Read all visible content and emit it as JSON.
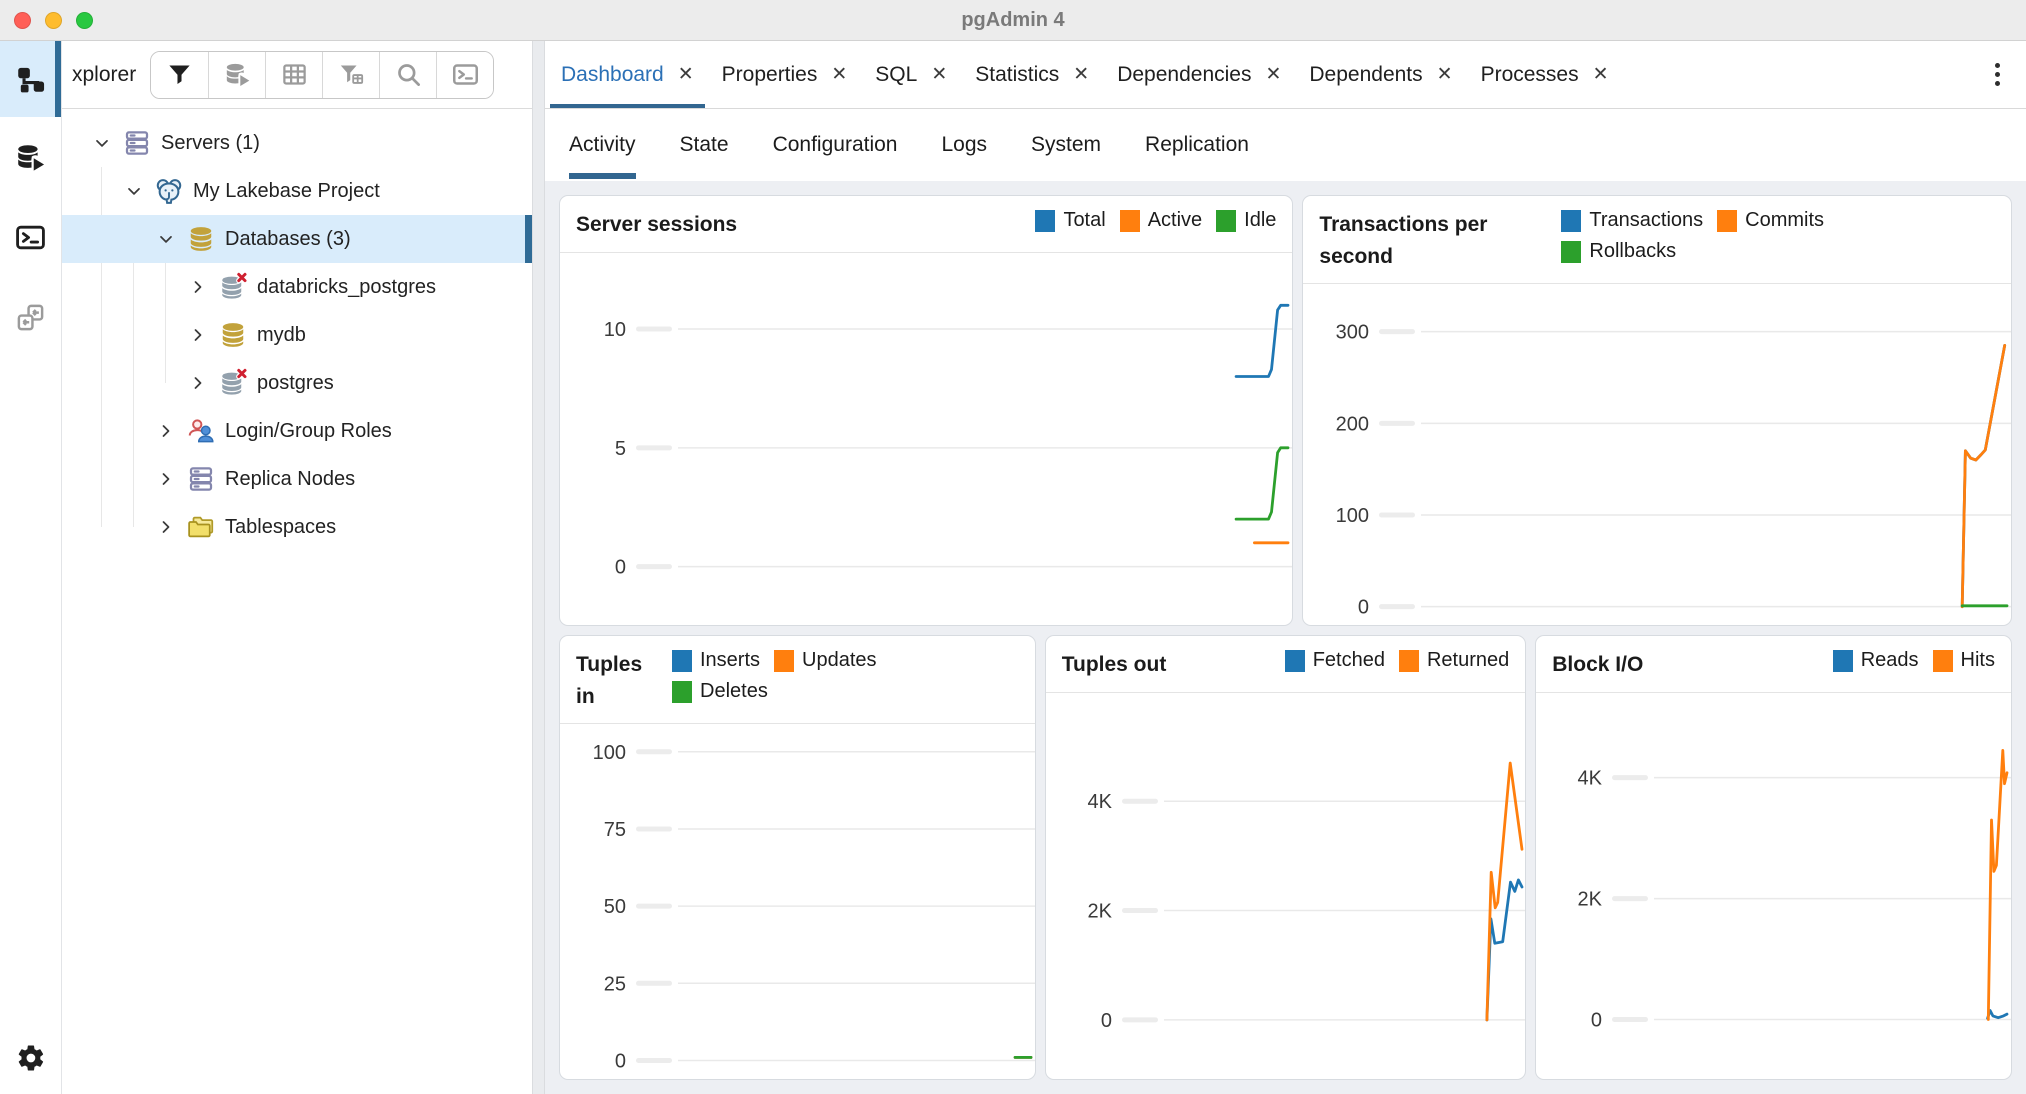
{
  "window": {
    "title": "pgAdmin 4"
  },
  "titlebar_buttons": [
    "close",
    "minimize",
    "zoom"
  ],
  "colors": {
    "accent_blue": "#1f77b4",
    "accent_orange": "#ff7f0e",
    "accent_green": "#2ca02c",
    "active_tab_text": "#2b70b6",
    "tab_underline": "#326690",
    "selection_bg": "#d9ecfb",
    "selection_bar": "#2f6b96"
  },
  "rail": {
    "items": [
      {
        "id": "object-explorer",
        "icon": "object-explorer-tree",
        "active": true,
        "dim": false
      },
      {
        "id": "query-tool",
        "icon": "database-play",
        "active": false,
        "dim": false
      },
      {
        "id": "psql-terminal",
        "icon": "terminal",
        "active": false,
        "dim": false
      },
      {
        "id": "schema-diff",
        "icon": "schema-diff",
        "active": false,
        "dim": true
      }
    ],
    "bottom": {
      "id": "settings",
      "icon": "gear"
    }
  },
  "explorer": {
    "title": "xplorer",
    "toolbar": [
      {
        "id": "filter",
        "icon": "funnel",
        "dim": false
      },
      {
        "id": "view-data",
        "icon": "database-play",
        "dim": true
      },
      {
        "id": "table",
        "icon": "grid",
        "dim": true
      },
      {
        "id": "filtered-rows",
        "icon": "funnel-grid",
        "dim": true
      },
      {
        "id": "search",
        "icon": "magnifier",
        "dim": true
      },
      {
        "id": "query-tool",
        "icon": "terminal",
        "dim": true
      }
    ],
    "tree": [
      {
        "label": "Servers (1)",
        "icon": "server-stack",
        "state": "expanded",
        "level": 0,
        "selected": false
      },
      {
        "label": "My Lakebase Project",
        "icon": "postgres-elephant",
        "state": "expanded",
        "level": 1,
        "selected": false
      },
      {
        "label": "Databases (3)",
        "icon": "database-gold",
        "state": "expanded",
        "level": 2,
        "selected": true
      },
      {
        "label": "databricks_postgres",
        "icon": "database-disconnected",
        "state": "collapsed",
        "level": 3,
        "selected": false
      },
      {
        "label": "mydb",
        "icon": "database-gold",
        "state": "collapsed",
        "level": 3,
        "selected": false
      },
      {
        "label": "postgres",
        "icon": "database-disconnected",
        "state": "collapsed",
        "level": 3,
        "selected": false
      },
      {
        "label": "Login/Group Roles",
        "icon": "login-group-roles",
        "state": "collapsed",
        "level": 2,
        "selected": false
      },
      {
        "label": "Replica Nodes",
        "icon": "server-stack",
        "state": "collapsed",
        "level": 2,
        "selected": false
      },
      {
        "label": "Tablespaces",
        "icon": "folders",
        "state": "collapsed",
        "level": 2,
        "selected": false
      }
    ]
  },
  "main": {
    "close_glyph": "✕",
    "tabs": [
      {
        "label": "Dashboard",
        "active": true
      },
      {
        "label": "Properties",
        "active": false
      },
      {
        "label": "SQL",
        "active": false
      },
      {
        "label": "Statistics",
        "active": false
      },
      {
        "label": "Dependencies",
        "active": false
      },
      {
        "label": "Dependents",
        "active": false
      },
      {
        "label": "Processes",
        "active": false
      }
    ],
    "subtabs": [
      {
        "label": "Activity",
        "active": true
      },
      {
        "label": "State",
        "active": false
      },
      {
        "label": "Configuration",
        "active": false
      },
      {
        "label": "Logs",
        "active": false
      },
      {
        "label": "System",
        "active": false
      },
      {
        "label": "Replication",
        "active": false
      }
    ]
  },
  "chart_data": [
    {
      "id": "server-sessions",
      "type": "line",
      "title": "Server sessions",
      "legend_align": "end",
      "grid": true,
      "legend_position": "top-right",
      "ylim": [
        -2.5,
        13.2
      ],
      "yticks": [
        {
          "value": 0,
          "label": "0"
        },
        {
          "value": 5,
          "label": "5"
        },
        {
          "value": 10,
          "label": "10"
        }
      ],
      "series": [
        {
          "name": "Total",
          "color": "#1f77b4",
          "points": [
            [
              0.915,
              8
            ],
            [
              0.968,
              8
            ],
            [
              0.973,
              8.3
            ],
            [
              0.983,
              10.8
            ],
            [
              0.988,
              11
            ],
            [
              1,
              11
            ]
          ]
        },
        {
          "name": "Active",
          "color": "#ff7f0e",
          "points": [
            [
              0.945,
              1
            ],
            [
              1,
              1
            ]
          ]
        },
        {
          "name": "Idle",
          "color": "#2ca02c",
          "points": [
            [
              0.915,
              2
            ],
            [
              0.968,
              2
            ],
            [
              0.973,
              2.3
            ],
            [
              0.983,
              4.8
            ],
            [
              0.988,
              5
            ],
            [
              1,
              5
            ]
          ]
        }
      ]
    },
    {
      "id": "transactions-per-second",
      "type": "line",
      "title": "Transactions per second",
      "legend_align": "start",
      "legend_max": 330,
      "grid": true,
      "legend_position": "top",
      "ylim": [
        -20,
        352
      ],
      "yticks": [
        {
          "value": 0,
          "label": "0"
        },
        {
          "value": 100,
          "label": "100"
        },
        {
          "value": 200,
          "label": "200"
        },
        {
          "value": 300,
          "label": "300"
        }
      ],
      "series": [
        {
          "name": "Transactions",
          "color": "#1f77b4",
          "points": [
            [
              0.9235,
              0
            ],
            [
              0.929,
              170
            ],
            [
              0.938,
              162
            ],
            [
              0.947,
              160
            ],
            [
              0.956,
              166
            ],
            [
              0.963,
              171
            ],
            [
              0.996,
              285
            ]
          ]
        },
        {
          "name": "Commits",
          "color": "#ff7f0e",
          "points": [
            [
              0.9235,
              0
            ],
            [
              0.929,
              170
            ],
            [
              0.938,
              162
            ],
            [
              0.947,
              160
            ],
            [
              0.956,
              166
            ],
            [
              0.963,
              171
            ],
            [
              0.996,
              285
            ]
          ]
        },
        {
          "name": "Rollbacks",
          "color": "#2ca02c",
          "points": [
            [
              0.9235,
              1
            ],
            [
              1,
              1
            ]
          ]
        }
      ]
    },
    {
      "id": "tuples-in",
      "type": "line",
      "title": "Tuples in",
      "legend_align": "start",
      "legend_max": 250,
      "grid": true,
      "legend_position": "top",
      "ylim": [
        -6,
        109
      ],
      "yticks": [
        {
          "value": 0,
          "label": "0"
        },
        {
          "value": 25,
          "label": "25"
        },
        {
          "value": 50,
          "label": "50"
        },
        {
          "value": 75,
          "label": "75"
        },
        {
          "value": 100,
          "label": "100"
        }
      ],
      "series": [
        {
          "name": "Inserts",
          "color": "#1f77b4",
          "points": [
            [
              0.955,
              1
            ],
            [
              1,
              1
            ]
          ]
        },
        {
          "name": "Updates",
          "color": "#ff7f0e",
          "points": [
            [
              0.955,
              1
            ],
            [
              1,
              1
            ]
          ]
        },
        {
          "name": "Deletes",
          "color": "#2ca02c",
          "points": [
            [
              0.955,
              1
            ],
            [
              1,
              1
            ]
          ]
        }
      ]
    },
    {
      "id": "tuples-out",
      "type": "line",
      "title": "Tuples out",
      "legend_align": "end",
      "grid": true,
      "legend_position": "top-right",
      "ylim": [
        -1100,
        5980
      ],
      "yticks": [
        {
          "value": 0,
          "label": "0"
        },
        {
          "value": 2000,
          "label": "2K"
        },
        {
          "value": 4000,
          "label": "4K"
        }
      ],
      "series": [
        {
          "name": "Fetched",
          "color": "#1f77b4",
          "points": [
            [
              0.902,
              0
            ],
            [
              0.913,
              1850
            ],
            [
              0.924,
              1400
            ],
            [
              0.946,
              1430
            ],
            [
              0.968,
              2520
            ],
            [
              0.98,
              2350
            ],
            [
              0.99,
              2560
            ],
            [
              1,
              2430
            ]
          ]
        },
        {
          "name": "Returned",
          "color": "#ff7f0e",
          "points": [
            [
              0.902,
              0
            ],
            [
              0.914,
              2700
            ],
            [
              0.925,
              2050
            ],
            [
              0.932,
              2150
            ],
            [
              0.967,
              4700
            ],
            [
              1,
              3120
            ]
          ]
        }
      ]
    },
    {
      "id": "block-io",
      "type": "line",
      "title": "Block I/O",
      "legend_align": "end",
      "grid": true,
      "legend_position": "top-right",
      "ylim": [
        -1000,
        5400
      ],
      "yticks": [
        {
          "value": 0,
          "label": "0"
        },
        {
          "value": 2000,
          "label": "2K"
        },
        {
          "value": 4000,
          "label": "4K"
        }
      ],
      "series": [
        {
          "name": "Reads",
          "color": "#1f77b4",
          "points": [
            [
              0.945,
              20
            ],
            [
              0.952,
              150
            ],
            [
              0.96,
              60
            ],
            [
              0.975,
              30
            ],
            [
              0.99,
              60
            ],
            [
              1,
              90
            ]
          ]
        },
        {
          "name": "Hits",
          "color": "#ff7f0e",
          "points": [
            [
              0.947,
              0
            ],
            [
              0.956,
              3300
            ],
            [
              0.963,
              2450
            ],
            [
              0.97,
              2550
            ],
            [
              0.988,
              4450
            ],
            [
              0.993,
              3900
            ],
            [
              1,
              4080
            ]
          ]
        }
      ]
    }
  ]
}
